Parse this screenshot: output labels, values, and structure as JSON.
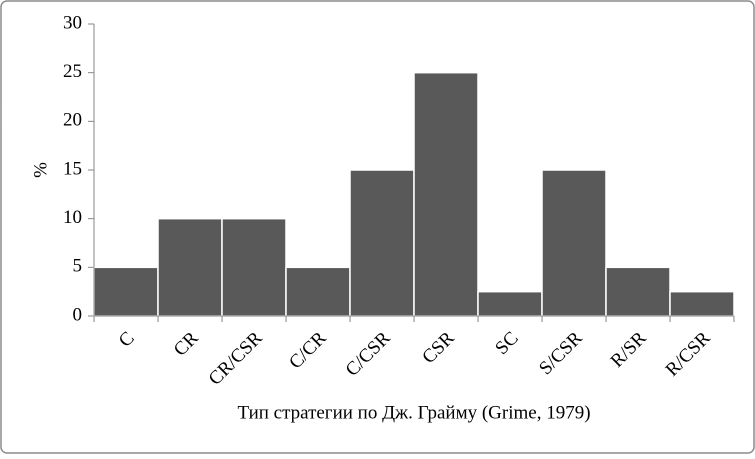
{
  "chart_data": {
    "type": "bar",
    "categories": [
      "C",
      "CR",
      "CR/CSR",
      "C/CR",
      "C/CSR",
      "CSR",
      "SC",
      "S/CSR",
      "R/SR",
      "R/CSR"
    ],
    "values": [
      5,
      10,
      10,
      5,
      15,
      25,
      2.5,
      15,
      5,
      2.5
    ],
    "color": "#595959",
    "y_label": "%",
    "x_label": "Тип стратегии по Дж. Грайму (Grime, 1979)",
    "ylim": [
      0,
      30
    ],
    "yticks": [
      0,
      5,
      10,
      15,
      20,
      25,
      30
    ],
    "grid": false
  }
}
